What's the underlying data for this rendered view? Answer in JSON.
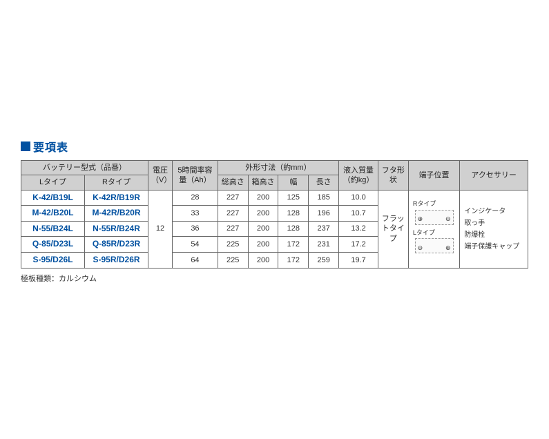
{
  "title": "要項表",
  "headers": {
    "battery_model": "バッテリー型式（品番）",
    "l_type": "Lタイプ",
    "r_type": "Rタイプ",
    "voltage": "電圧（V）",
    "capacity": "5時間率容量（Ah）",
    "dimensions": "外形寸法（約mm）",
    "total_height": "総高さ",
    "box_height": "箱高さ",
    "width": "幅",
    "length": "長さ",
    "weight": "液入質量（約kg）",
    "lid_shape": "フタ形状",
    "terminal_position": "端子位置",
    "accessories": "アクセサリー"
  },
  "voltage_value": "12",
  "lid_shape_value": "フラットタイプ",
  "rows": [
    {
      "l": "K-42/B19L",
      "r": "K-42R/B19R",
      "ah": "28",
      "th": "227",
      "bh": "200",
      "w": "125",
      "len": "185",
      "kg": "10.0"
    },
    {
      "l": "M-42/B20L",
      "r": "M-42R/B20R",
      "ah": "33",
      "th": "227",
      "bh": "200",
      "w": "128",
      "len": "196",
      "kg": "10.7"
    },
    {
      "l": "N-55/B24L",
      "r": "N-55R/B24R",
      "ah": "36",
      "th": "227",
      "bh": "200",
      "w": "128",
      "len": "237",
      "kg": "13.2"
    },
    {
      "l": "Q-85/D23L",
      "r": "Q-85R/D23R",
      "ah": "54",
      "th": "225",
      "bh": "200",
      "w": "172",
      "len": "231",
      "kg": "17.2"
    },
    {
      "l": "S-95/D26L",
      "r": "S-95R/D26R",
      "ah": "64",
      "th": "225",
      "bh": "200",
      "w": "172",
      "len": "259",
      "kg": "19.7"
    }
  ],
  "terminal": {
    "r_label": "Rタイプ",
    "l_label": "Lタイプ",
    "plus": "⊕",
    "minus": "⊖"
  },
  "accessories_list": [
    "インジケータ",
    "取っ手",
    "防爆栓",
    "端子保護キャップ"
  ],
  "footnote": "極板種類：カルシウム",
  "colors": {
    "brand_blue": "#0050a0",
    "header_bg": "#d0d0d0",
    "border": "#666666",
    "background": "#ffffff",
    "text": "#333333"
  }
}
